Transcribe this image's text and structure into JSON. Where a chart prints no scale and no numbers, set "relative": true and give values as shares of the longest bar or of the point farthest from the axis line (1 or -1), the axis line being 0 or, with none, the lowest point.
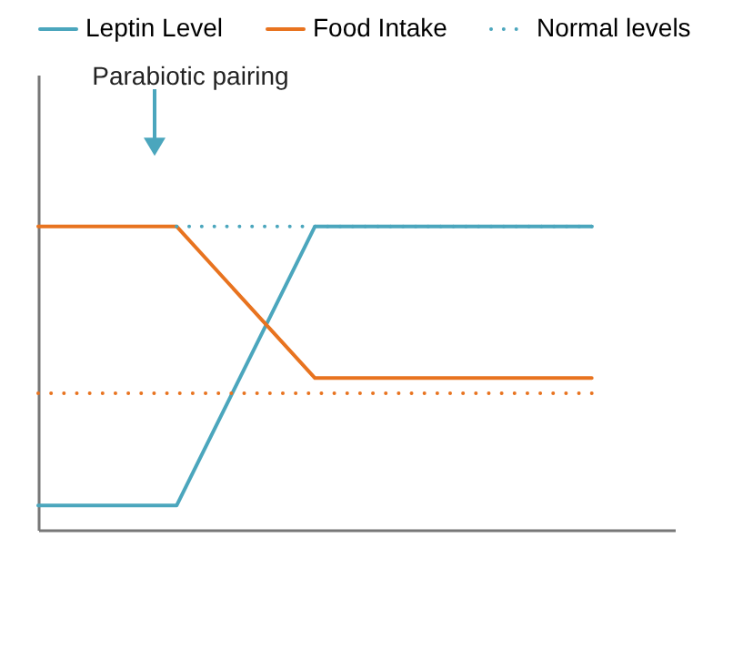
{
  "chart_data": {
    "type": "line",
    "relative": true,
    "categories": [
      null,
      null,
      null,
      null,
      null
    ],
    "series": [
      {
        "name": "Leptin Level",
        "color": "#4ba6bd",
        "values": [
          0.08,
          0.08,
          1,
          1,
          1
        ]
      },
      {
        "name": "Food Intake",
        "color": "#e8731f",
        "values": [
          1,
          1,
          0.5,
          0.5,
          0.5
        ]
      },
      {
        "name": "Normal levels",
        "color": "#4ba6bd",
        "line_style": "dotted",
        "values": [
          null,
          1,
          1,
          1,
          1
        ]
      },
      {
        "color": "#e8731f",
        "line_style": "dotted",
        "values": [
          0.45,
          0.45,
          0.45,
          0.45,
          0.45
        ]
      }
    ],
    "annotations": [
      "Parabiotic pairing"
    ],
    "legend": "top left",
    "marker": "none",
    "line_style": "solid",
    "grid": false
  }
}
